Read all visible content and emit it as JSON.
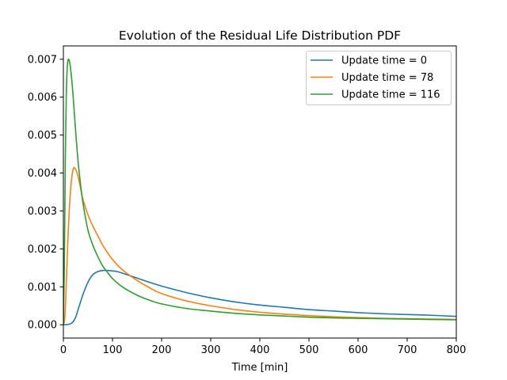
{
  "chart_data": {
    "type": "line",
    "title": "Evolution of the Residual Life Distribution PDF",
    "xlabel": "Time [min]",
    "ylabel": "",
    "xlim": [
      0,
      800
    ],
    "ylim": [
      -0.00035,
      0.00735
    ],
    "xticks": [
      0,
      100,
      200,
      300,
      400,
      500,
      600,
      700,
      800
    ],
    "xtick_labels": [
      "0",
      "100",
      "200",
      "300",
      "400",
      "500",
      "600",
      "700",
      "800"
    ],
    "yticks": [
      0,
      0.001,
      0.002,
      0.003,
      0.004,
      0.005,
      0.006,
      0.007
    ],
    "ytick_labels": [
      "0.000",
      "0.001",
      "0.002",
      "0.003",
      "0.004",
      "0.005",
      "0.006",
      "0.007"
    ],
    "grid": false,
    "legend_position": "top-right",
    "series": [
      {
        "name": "Update time = 0",
        "color": "#1f77b4",
        "x": [
          0,
          5,
          10,
          15,
          20,
          25,
          30,
          40,
          50,
          60,
          70,
          80,
          90,
          100,
          110,
          125,
          150,
          175,
          200,
          250,
          300,
          350,
          400,
          450,
          500,
          550,
          600,
          650,
          700,
          750,
          800
        ],
        "y": [
          0,
          0,
          1e-05,
          3e-05,
          8e-05,
          0.0002,
          0.0004,
          0.0008,
          0.00112,
          0.00132,
          0.0014,
          0.00143,
          0.00143,
          0.00142,
          0.0014,
          0.00134,
          0.00123,
          0.00112,
          0.00102,
          0.00085,
          0.00071,
          0.0006,
          0.00052,
          0.00046,
          0.0004,
          0.00036,
          0.00032,
          0.00029,
          0.00027,
          0.00025,
          0.00022
        ]
      },
      {
        "name": "Update time = 78",
        "color": "#ff7f0e",
        "x": [
          0,
          3,
          6,
          10,
          15,
          20,
          25,
          30,
          35,
          40,
          50,
          60,
          70,
          80,
          90,
          100,
          120,
          150,
          175,
          200,
          250,
          300,
          350,
          400,
          450,
          500,
          550,
          600,
          650,
          700,
          750,
          800
        ],
        "y": [
          0,
          0.0002,
          0.0011,
          0.0025,
          0.0036,
          0.0041,
          0.0041,
          0.0039,
          0.0036,
          0.0033,
          0.0029,
          0.0026,
          0.00235,
          0.0021,
          0.0019,
          0.00172,
          0.00145,
          0.00117,
          0.00098,
          0.00082,
          0.00063,
          0.0005,
          0.0004,
          0.00033,
          0.00028,
          0.00024,
          0.00021,
          0.00019,
          0.00017,
          0.00016,
          0.00015,
          0.00014
        ]
      },
      {
        "name": "Update time = 116",
        "color": "#2ca02c",
        "x": [
          0,
          2,
          4,
          6,
          8,
          10,
          13,
          16,
          20,
          25,
          30,
          35,
          40,
          50,
          60,
          70,
          80,
          90,
          100,
          120,
          150,
          175,
          200,
          250,
          300,
          350,
          400,
          450,
          500,
          550,
          600,
          650,
          700,
          750,
          800
        ],
        "y": [
          0,
          0.0016,
          0.0044,
          0.0061,
          0.0068,
          0.007,
          0.0069,
          0.0066,
          0.006,
          0.0051,
          0.0043,
          0.0037,
          0.0032,
          0.0025,
          0.0021,
          0.0018,
          0.00155,
          0.00138,
          0.00122,
          0.001,
          0.00078,
          0.00065,
          0.00055,
          0.00043,
          0.00036,
          0.0003,
          0.00026,
          0.00023,
          0.0002,
          0.00018,
          0.00017,
          0.00016,
          0.00015,
          0.00014,
          0.00013
        ]
      }
    ]
  }
}
